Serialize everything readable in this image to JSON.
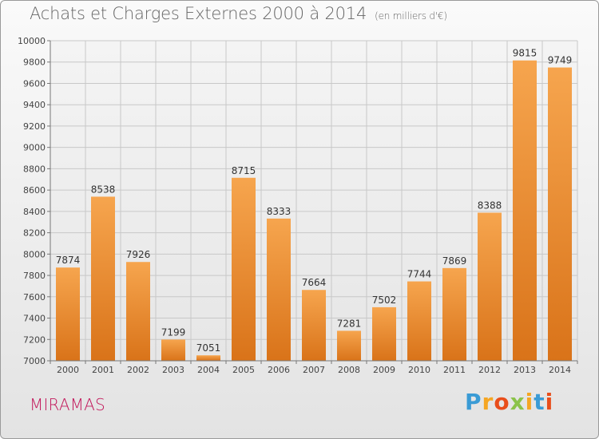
{
  "title": "Achats et Charges Externes 2000 à 2014",
  "subtitle": "(en milliers d'€)",
  "city": "MIRAMAS",
  "logo": {
    "letters": [
      "P",
      "r",
      "o",
      "x",
      "i",
      "t",
      "i"
    ],
    "colors": [
      "#3a9bd5",
      "#f5a623",
      "#e94e1b",
      "#8bc34a",
      "#f5a623",
      "#3a9bd5",
      "#e94e1b"
    ]
  },
  "colors": {
    "bar_light": "#f6a54e",
    "bar_dark": "#d97319",
    "grid": "#c8c8c8",
    "axis_text": "#444444",
    "city": "#c2185b"
  },
  "chart_data": {
    "type": "bar",
    "title": "Achats et Charges Externes 2000 à 2014",
    "subtitle": "(en milliers d'€)",
    "categories": [
      "2000",
      "2001",
      "2002",
      "2003",
      "2004",
      "2005",
      "2006",
      "2007",
      "2008",
      "2009",
      "2010",
      "2011",
      "2012",
      "2013",
      "2014"
    ],
    "values": [
      7874,
      8538,
      7926,
      7199,
      7051,
      8715,
      8333,
      7664,
      7281,
      7502,
      7744,
      7869,
      8388,
      9815,
      9749
    ],
    "ylim": [
      7000,
      10000
    ],
    "yticks": [
      7000,
      7200,
      7400,
      7600,
      7800,
      8000,
      8200,
      8400,
      8600,
      8800,
      9000,
      9200,
      9400,
      9600,
      9800,
      10000
    ],
    "grid": true,
    "data_labels": true
  }
}
